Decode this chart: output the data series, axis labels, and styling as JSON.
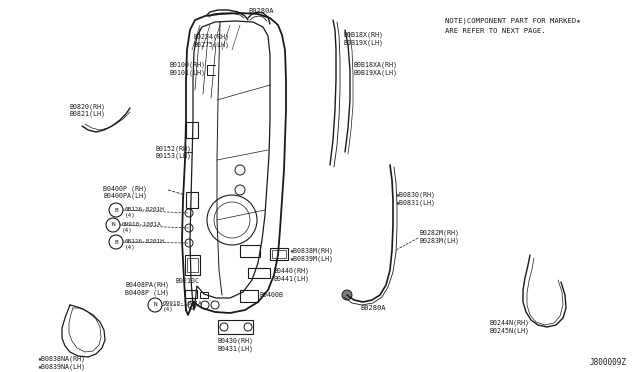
{
  "bg_color": "#ffffff",
  "line_color": "#1a1a1a",
  "fig_width": 6.4,
  "fig_height": 3.72,
  "note_line1": "NOTE)COMPONENT PART FOR MARKED★",
  "note_line2": "ARE REFER TO NEXT PAGE.",
  "diagram_id": "J800009Z"
}
